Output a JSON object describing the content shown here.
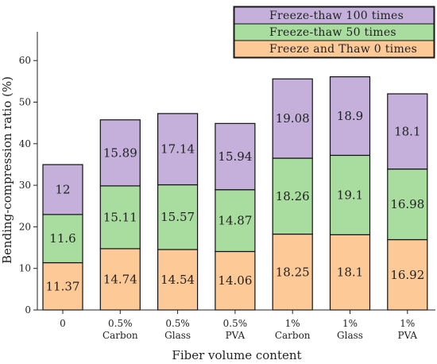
{
  "chart_data": {
    "type": "bar",
    "stacked": true,
    "xlabel": "Fiber volume content",
    "ylabel": "Bending-compression ratio (%)",
    "ylim": [
      0,
      65
    ],
    "yticks": [
      0,
      10,
      20,
      30,
      40,
      50,
      60
    ],
    "categories": [
      [
        "0"
      ],
      [
        "0.5%",
        "Carbon"
      ],
      [
        "0.5%",
        "Glass"
      ],
      [
        "0.5%",
        "PVA"
      ],
      [
        "1%",
        "Carbon"
      ],
      [
        "1%",
        "Glass"
      ],
      [
        "1%",
        "PVA"
      ]
    ],
    "series": [
      {
        "name": "Freeze and Thaw 0 times",
        "color": "#fdc997",
        "values": [
          11.37,
          14.74,
          14.54,
          14.06,
          18.25,
          18.1,
          16.92
        ]
      },
      {
        "name": "Freeze-thaw 50 times",
        "color": "#a9dd9f",
        "values": [
          11.6,
          15.11,
          15.57,
          14.87,
          18.26,
          19.1,
          16.98
        ]
      },
      {
        "name": "Freeze-thaw 100 times",
        "color": "#c4b0da",
        "values": [
          12,
          15.89,
          17.14,
          15.94,
          19.08,
          18.9,
          18.1
        ]
      }
    ],
    "value_labels": [
      [
        "11.37",
        "11.6",
        "12"
      ],
      [
        "14.74",
        "15.11",
        "15.89"
      ],
      [
        "14.54",
        "15.57",
        "17.14"
      ],
      [
        "14.06",
        "14.87",
        "15.94"
      ],
      [
        "18.25",
        "18.26",
        "19.08"
      ],
      [
        "18.1",
        "19.1",
        "18.9"
      ],
      [
        "16.92",
        "16.98",
        "18.1"
      ]
    ],
    "legend": {
      "position": "top-right",
      "order": [
        "Freeze-thaw 100 times",
        "Freeze-thaw 50 times",
        "Freeze and Thaw 0 times"
      ]
    },
    "grid": false
  }
}
